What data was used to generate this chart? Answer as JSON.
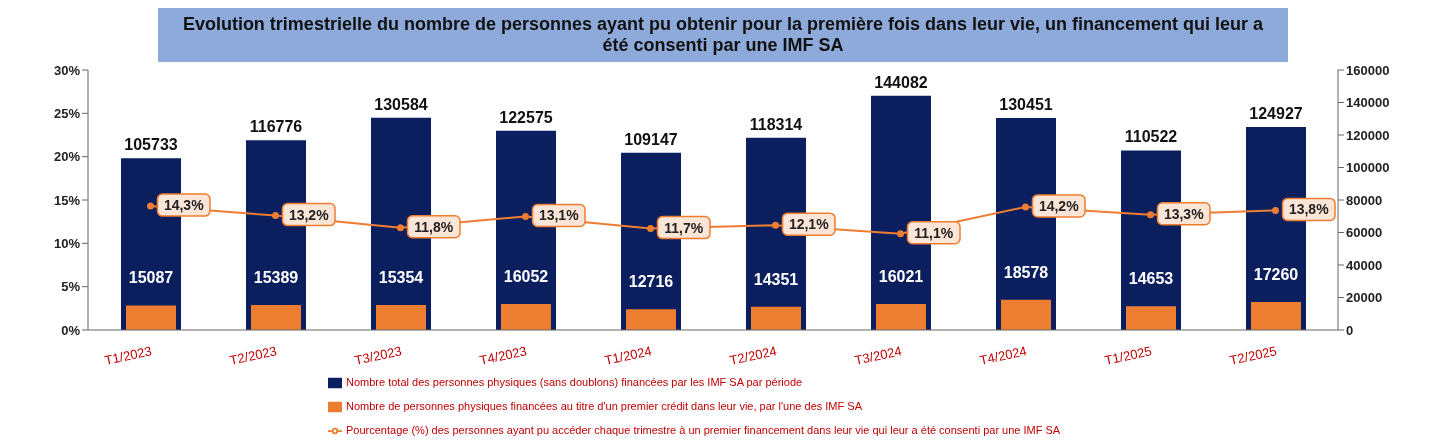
{
  "chart_data": {
    "type": "bar",
    "title": "Evolution trimestrielle du nombre de personnes ayant pu obtenir pour la première fois dans leur vie, un financement qui leur a été consenti par une IMF SA",
    "categories": [
      "T1/2023",
      "T2/2023",
      "T3/2023",
      "T4/2023",
      "T1/2024",
      "T2/2024",
      "T3/2024",
      "T4/2024",
      "T1/2025",
      "T2/2025"
    ],
    "series": [
      {
        "name": "Nombre total des personnes physiques (sans doublons) financées par les IMF SA par période",
        "axis": "y2",
        "color": "#0b1f5e",
        "values": [
          105733,
          116776,
          130584,
          122575,
          109147,
          118314,
          144082,
          130451,
          110522,
          124927
        ],
        "value_labels": [
          "105733",
          "116776",
          "130584",
          "122575",
          "109147",
          "118314",
          "144082",
          "130451",
          "110522",
          "124927"
        ]
      },
      {
        "name": "Nombre de personnes physiques financées au titre d'un premier crédit dans leur vie, par l'une des IMF SA",
        "axis": "y2",
        "color": "#ed7d31",
        "values": [
          15087,
          15389,
          15354,
          16052,
          12716,
          14351,
          16021,
          18578,
          14653,
          17260
        ],
        "value_labels": [
          "15087",
          "15389",
          "15354",
          "16052",
          "12716",
          "14351",
          "16021",
          "18578",
          "14653",
          "17260"
        ]
      },
      {
        "name": "Pourcentage (%) des personnes ayant pu accéder chaque trimestre à un premier financement dans leur vie qui leur a été consenti par une IMF SA",
        "type": "line",
        "axis": "y",
        "color": "#ed7d31",
        "marker": "circle",
        "values": [
          14.3,
          13.2,
          11.8,
          13.1,
          11.7,
          12.1,
          11.1,
          14.2,
          13.3,
          13.8
        ],
        "value_labels": [
          "14,3%",
          "13,2%",
          "11,8%",
          "13,1%",
          "11,7%",
          "12,1%",
          "11,1%",
          "14,2%",
          "13,3%",
          "13,8%"
        ]
      }
    ],
    "ylim": [
      0,
      30
    ],
    "yticks": [
      {
        "value": 0,
        "label": "0%"
      },
      {
        "value": 5,
        "label": "5%"
      },
      {
        "value": 10,
        "label": "10%"
      },
      {
        "value": 15,
        "label": "15%"
      },
      {
        "value": 20,
        "label": "20%"
      },
      {
        "value": 25,
        "label": "25%"
      },
      {
        "value": 30,
        "label": "30%"
      }
    ],
    "y2lim": [
      0,
      160000
    ],
    "y2ticks": [
      0,
      20000,
      40000,
      60000,
      80000,
      100000,
      120000,
      140000,
      160000
    ],
    "legend": "bottom",
    "grid": false
  }
}
